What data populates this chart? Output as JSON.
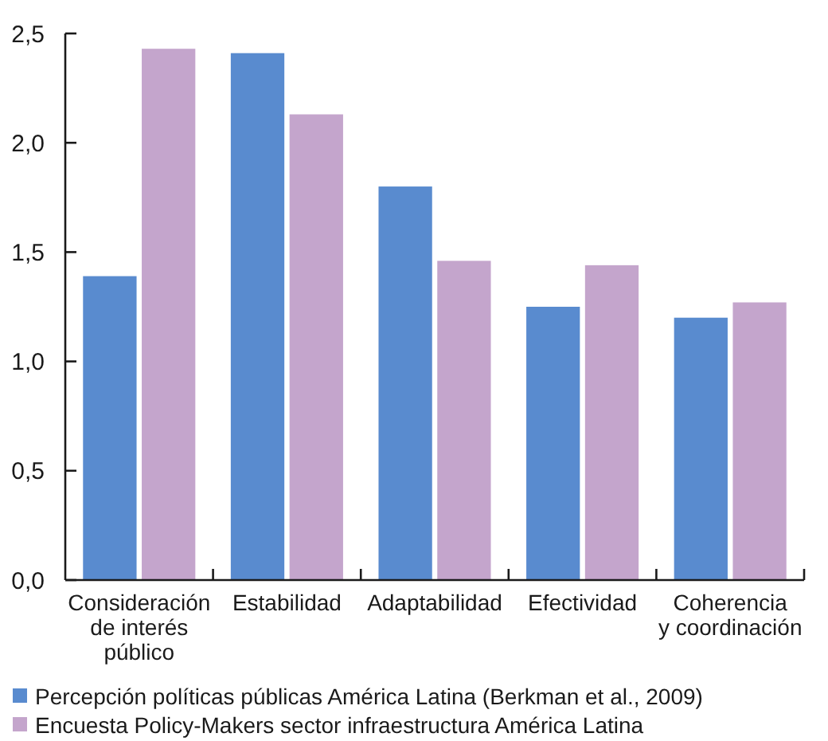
{
  "chart_data": {
    "type": "bar",
    "categories": [
      "Consideración de interés público",
      "Estabilidad",
      "Adaptabilidad",
      "Efectividad",
      "Coherencia y coordinación"
    ],
    "series": [
      {
        "name": "Percepción políticas públicas América Latina (Berkman et al., 2009)",
        "color": "#598bcf",
        "values": [
          1.39,
          2.41,
          1.8,
          1.25,
          1.2
        ]
      },
      {
        "name": "Encuesta Policy-Makers sector infraestructura América Latina",
        "color": "#c4a5cc",
        "values": [
          2.43,
          2.13,
          1.46,
          1.44,
          1.27
        ]
      }
    ],
    "ylim": [
      0,
      2.5
    ],
    "yticks": [
      {
        "value": 0,
        "label": "0,0"
      },
      {
        "value": 0.5,
        "label": "0,5"
      },
      {
        "value": 1,
        "label": "1,0"
      },
      {
        "value": 1.5,
        "label": "1,5"
      },
      {
        "value": 2,
        "label": "2,0"
      },
      {
        "value": 2.5,
        "label": "2,5"
      }
    ],
    "legend": "bottom"
  }
}
